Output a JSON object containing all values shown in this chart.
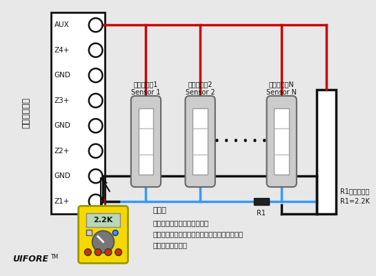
{
  "bg_color": "#e8e8e8",
  "panel_labels": [
    "AUX",
    "Z4+",
    "GND",
    "Z3+",
    "GND",
    "Z2+",
    "GND",
    "Z1+"
  ],
  "vertical_label": "防盗报警主机",
  "sensor1_label_cn": "有线探测器1",
  "sensor1_label_en": "Sensor 1",
  "sensor2_label_cn": "有线探测器2",
  "sensor2_label_en": "Sensor 2",
  "sensorN_label_cn": "有线探测器N",
  "sensorN_label_en": "Sensor N",
  "red_color": "#cc0000",
  "blue_color": "#3399ff",
  "black_color": "#111111",
  "yellow_color": "#f5d800",
  "note_title": "注意：",
  "note_line1": "此图使用的是常闭的连接方式",
  "note_line2": "在使用万用表测量电阔值前，请先给探测器通电",
  "note_line3": "并关闭报警主机。",
  "r1_label": "R1",
  "r1_note_line1": "R1是线尾电阔",
  "r1_note_line2": "R1=2.2K",
  "multimeter_value": "2.2K",
  "brand_label": "UIFORE",
  "brand_tm": "TM",
  "dots": "• • • • • •"
}
